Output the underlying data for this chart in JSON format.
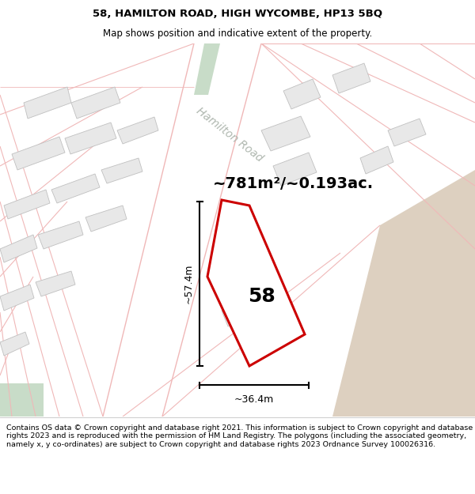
{
  "title_line1": "58, HAMILTON ROAD, HIGH WYCOMBE, HP13 5BQ",
  "title_line2": "Map shows position and indicative extent of the property.",
  "area_label": "~781m²/~0.193ac.",
  "property_number": "58",
  "dim_vertical": "~57.4m",
  "dim_horizontal": "~36.4m",
  "road_label": "Hamilton Road",
  "copyright_text": "Contains OS data © Crown copyright and database right 2021. This information is subject to Crown copyright and database rights 2023 and is reproduced with the permission of HM Land Registry. The polygons (including the associated geometry, namely x, y co-ordinates) are subject to Crown copyright and database rights 2023 Ordnance Survey 100026316.",
  "map_bg": "#ffffff",
  "road_color": "#f0b8b8",
  "building_color": "#e8e8e8",
  "building_edge": "#c0c0c0",
  "property_outline_color": "#cc0000",
  "tan_area_color": "#ddd0c0",
  "green_area_color": "#c8dcc8",
  "road_label_color": "#b0b8b0",
  "title_fontsize": 9.5,
  "subtitle_fontsize": 8.5,
  "copyright_fontsize": 6.8,
  "area_fontsize": 14,
  "number_fontsize": 18,
  "dim_fontsize": 9
}
